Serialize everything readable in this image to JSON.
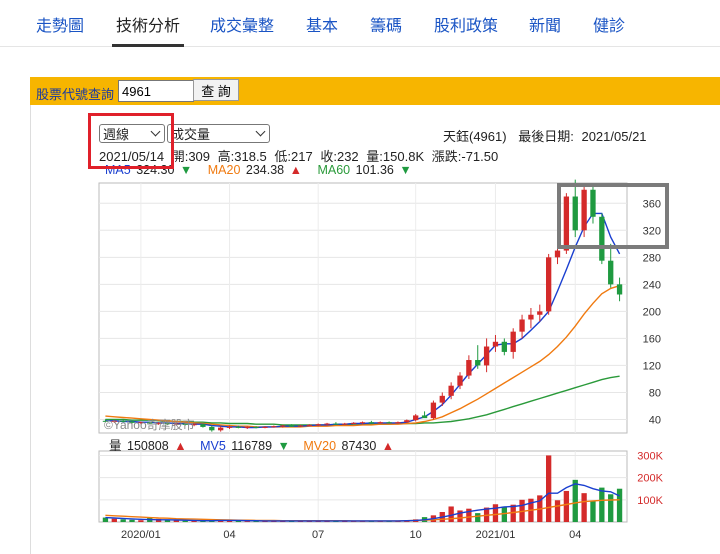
{
  "nav": {
    "items": [
      {
        "label": "走勢圖",
        "active": false
      },
      {
        "label": "技術分析",
        "active": true
      },
      {
        "label": "成交彙整",
        "active": false
      },
      {
        "label": "基本",
        "active": false
      },
      {
        "label": "籌碼",
        "active": false
      },
      {
        "label": "股利政策",
        "active": false
      },
      {
        "label": "新聞",
        "active": false
      },
      {
        "label": "健診",
        "active": false
      }
    ]
  },
  "query": {
    "label": "股票代號查詢",
    "input_value": "4961",
    "button_label": "查 詢"
  },
  "controls": {
    "period_select": "週線",
    "indicator_select": "成交量"
  },
  "stock": {
    "name_code": "天鈺(4961)",
    "last_date_label": "最後日期:",
    "last_date": "2021/05/21"
  },
  "ohlc": {
    "date": "2021/05/14",
    "open": "開:309",
    "high": "高:318.5",
    "low": "低:217",
    "close": "收:232",
    "volume": "量:150.8K",
    "change": "漲跌:-71.50"
  },
  "ma": {
    "ma5": {
      "label": "MA5",
      "value": "324.30",
      "dir": "▼",
      "color": "#1a3fd0"
    },
    "ma20": {
      "label": "MA20",
      "value": "234.38",
      "dir": "▲",
      "color": "#f07a10"
    },
    "ma60": {
      "label": "MA60",
      "value": "101.36",
      "dir": "▼",
      "color": "#2a9a3a"
    }
  },
  "vol_ma": {
    "vol": {
      "label": "量",
      "value": "150808",
      "dir": "▲",
      "color": "#222222"
    },
    "mv5": {
      "label": "MV5",
      "value": "116789",
      "dir": "▼",
      "color": "#1a3fd0"
    },
    "mv20": {
      "label": "MV20",
      "value": "87430",
      "dir": "▲",
      "color": "#f07a10"
    }
  },
  "watermark": "©Yahoo奇摩股市",
  "colors": {
    "up": "#d42a2a",
    "down": "#1f9a40",
    "ma5": "#1a3fd0",
    "ma20": "#f07a10",
    "ma60": "#2a9a3a",
    "nav_link": "#1a54c4",
    "bar": "#f7b500"
  },
  "chart_data": {
    "type": "candlestick",
    "price_axis": {
      "ticks": [
        40,
        80,
        120,
        160,
        200,
        240,
        280,
        320,
        360
      ],
      "range": [
        20,
        390
      ]
    },
    "volume_axis": {
      "ticks": [
        "100K",
        "200K",
        "300K"
      ],
      "range": [
        0,
        320
      ]
    },
    "x_tick_labels": [
      "2020/01",
      "04",
      "07",
      "10",
      "2021/01",
      "04"
    ],
    "candles_ohlc": [
      [
        38,
        40,
        36,
        37
      ],
      [
        37,
        39,
        35,
        38
      ],
      [
        38,
        40,
        36,
        37
      ],
      [
        37,
        38,
        34,
        35
      ],
      [
        35,
        37,
        33,
        36
      ],
      [
        36,
        37,
        33,
        34
      ],
      [
        34,
        36,
        32,
        35
      ],
      [
        35,
        36,
        32,
        33
      ],
      [
        33,
        35,
        31,
        34
      ],
      [
        34,
        35,
        31,
        32
      ],
      [
        32,
        34,
        30,
        33
      ],
      [
        33,
        34,
        28,
        29
      ],
      [
        29,
        31,
        22,
        24
      ],
      [
        24,
        30,
        22,
        28
      ],
      [
        28,
        31,
        26,
        29
      ],
      [
        29,
        31,
        27,
        28
      ],
      [
        28,
        30,
        26,
        29
      ],
      [
        29,
        30,
        27,
        28
      ],
      [
        28,
        30,
        27,
        29
      ],
      [
        29,
        31,
        28,
        30
      ],
      [
        30,
        32,
        28,
        31
      ],
      [
        31,
        33,
        29,
        30
      ],
      [
        30,
        32,
        29,
        31
      ],
      [
        31,
        33,
        30,
        32
      ],
      [
        32,
        34,
        30,
        33
      ],
      [
        33,
        35,
        31,
        34
      ],
      [
        34,
        36,
        32,
        33
      ],
      [
        33,
        35,
        32,
        34
      ],
      [
        34,
        36,
        33,
        35
      ],
      [
        35,
        37,
        33,
        36
      ],
      [
        36,
        38,
        34,
        35
      ],
      [
        35,
        37,
        34,
        36
      ],
      [
        36,
        37,
        34,
        35
      ],
      [
        35,
        37,
        34,
        36
      ],
      [
        36,
        40,
        35,
        39
      ],
      [
        39,
        48,
        37,
        46
      ],
      [
        46,
        52,
        44,
        42
      ],
      [
        42,
        68,
        40,
        65
      ],
      [
        65,
        80,
        60,
        75
      ],
      [
        75,
        95,
        70,
        90
      ],
      [
        90,
        110,
        85,
        105
      ],
      [
        105,
        135,
        100,
        128
      ],
      [
        128,
        150,
        115,
        120
      ],
      [
        120,
        160,
        110,
        148
      ],
      [
        148,
        165,
        140,
        155
      ],
      [
        155,
        160,
        135,
        140
      ],
      [
        140,
        175,
        130,
        170
      ],
      [
        170,
        195,
        160,
        188
      ],
      [
        188,
        205,
        175,
        195
      ],
      [
        195,
        210,
        185,
        200
      ],
      [
        200,
        285,
        195,
        280
      ],
      [
        280,
        300,
        270,
        290
      ],
      [
        290,
        375,
        285,
        370
      ],
      [
        370,
        395,
        310,
        320
      ],
      [
        320,
        390,
        310,
        380
      ],
      [
        380,
        385,
        330,
        340
      ],
      [
        340,
        345,
        270,
        275
      ],
      [
        275,
        300,
        235,
        240
      ],
      [
        240,
        250,
        215,
        225
      ]
    ],
    "ma5": [
      38,
      38,
      37,
      37,
      36,
      36,
      35,
      35,
      34,
      34,
      33,
      33,
      31,
      30,
      29,
      29,
      28,
      28,
      29,
      29,
      30,
      30,
      30,
      31,
      32,
      32,
      33,
      33,
      34,
      34,
      35,
      35,
      35,
      35,
      36,
      40,
      44,
      52,
      62,
      76,
      92,
      108,
      122,
      136,
      150,
      152,
      152,
      160,
      172,
      185,
      200,
      230,
      262,
      295,
      325,
      345,
      345,
      310,
      285
    ],
    "ma20": [
      45,
      44,
      43,
      42,
      41,
      40,
      39,
      38,
      37,
      36,
      35,
      34,
      33,
      32,
      31,
      30,
      30,
      29,
      29,
      29,
      29,
      29,
      29,
      30,
      30,
      30,
      31,
      31,
      31,
      32,
      32,
      33,
      33,
      33,
      34,
      35,
      37,
      40,
      44,
      50,
      56,
      63,
      70,
      78,
      86,
      94,
      102,
      110,
      118,
      126,
      136,
      148,
      162,
      178,
      196,
      212,
      226,
      234,
      238
    ],
    "ma60": [
      40,
      40,
      40,
      39,
      39,
      39,
      38,
      38,
      37,
      37,
      36,
      36,
      35,
      35,
      34,
      34,
      34,
      33,
      33,
      33,
      32,
      32,
      32,
      32,
      32,
      32,
      32,
      32,
      33,
      33,
      33,
      33,
      33,
      34,
      34,
      34,
      35,
      35,
      36,
      37,
      39,
      41,
      44,
      47,
      51,
      55,
      59,
      63,
      67,
      71,
      75,
      79,
      83,
      87,
      91,
      95,
      99,
      102,
      104
    ],
    "volume": [
      20,
      15,
      12,
      10,
      8,
      22,
      14,
      10,
      8,
      6,
      5,
      5,
      7,
      10,
      6,
      5,
      4,
      5,
      4,
      4,
      5,
      4,
      4,
      5,
      5,
      4,
      5,
      5,
      4,
      5,
      5,
      6,
      5,
      5,
      8,
      12,
      22,
      30,
      45,
      70,
      52,
      60,
      40,
      65,
      80,
      70,
      78,
      100,
      105,
      120,
      300,
      98,
      140,
      190,
      130,
      95,
      155,
      125,
      150
    ],
    "mv5": [
      20,
      18,
      16,
      14,
      12,
      11,
      10,
      10,
      9,
      8,
      7,
      6,
      6,
      7,
      7,
      7,
      6,
      6,
      5,
      5,
      5,
      5,
      5,
      5,
      5,
      5,
      5,
      5,
      5,
      5,
      5,
      5,
      5,
      5,
      6,
      7,
      10,
      15,
      22,
      30,
      40,
      47,
      53,
      58,
      62,
      68,
      70,
      75,
      86,
      95,
      130,
      130,
      155,
      172,
      165,
      150,
      140,
      136,
      117
    ],
    "mv20": [
      30,
      28,
      26,
      24,
      22,
      20,
      18,
      17,
      15,
      14,
      13,
      12,
      11,
      10,
      9,
      8,
      8,
      7,
      7,
      7,
      6,
      6,
      6,
      6,
      6,
      6,
      6,
      6,
      5,
      5,
      5,
      5,
      5,
      5,
      6,
      7,
      8,
      10,
      12,
      15,
      18,
      22,
      26,
      30,
      34,
      38,
      43,
      48,
      53,
      58,
      66,
      72,
      79,
      86,
      92,
      95,
      98,
      99,
      100
    ]
  }
}
